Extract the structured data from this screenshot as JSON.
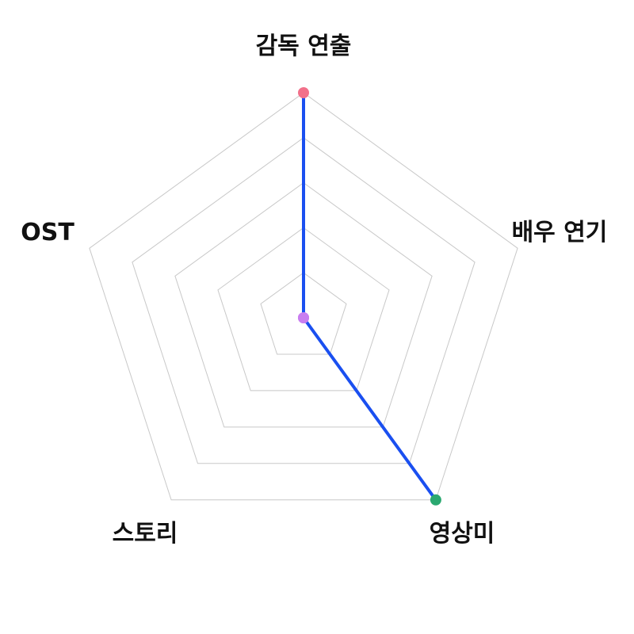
{
  "chart_data": {
    "type": "radar",
    "axes": [
      "감독 연출",
      "배우 연기",
      "영상미",
      "스토리",
      "OST"
    ],
    "values": [
      5,
      0,
      5,
      0,
      0
    ],
    "r_range": [
      0,
      5
    ],
    "grid_levels": 5,
    "grid": true,
    "legend": "none",
    "line_color": "#1a4ff0",
    "point_colors": [
      "#f2708a",
      "#c97ef0",
      "#2aa870",
      "#c97ef0",
      "#c97ef0"
    ]
  }
}
